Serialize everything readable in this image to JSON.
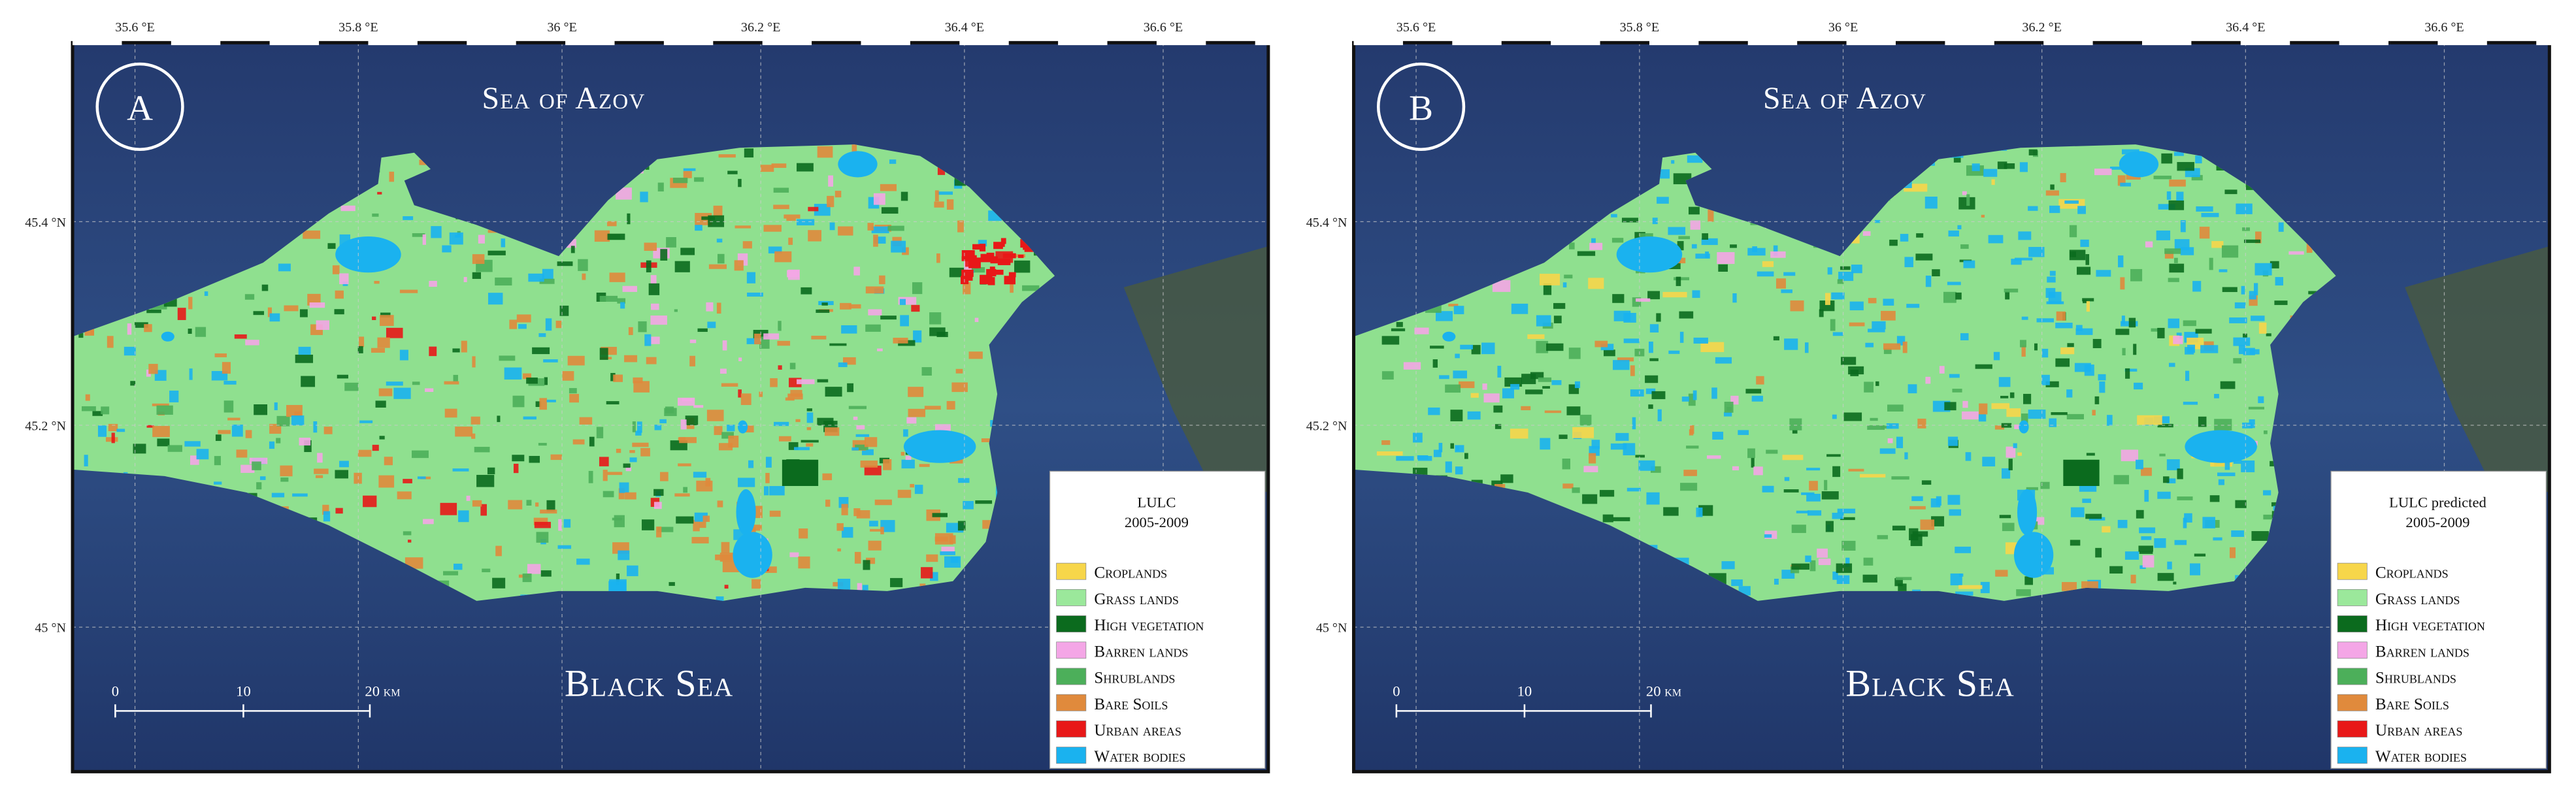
{
  "panels": [
    {
      "label": "A",
      "sea_top": "Sea of Azov",
      "sea_bottom": "Black Sea",
      "lon_ticks": [
        "35.6 °E",
        "35.8 °E",
        "36 °E",
        "36.2 °E",
        "36.4 °E",
        "36.6 °E"
      ],
      "lat_ticks": [
        "45.4 °N",
        "45.2 °N",
        "45 °N"
      ],
      "scale_labels": [
        "0",
        "10",
        "20 km"
      ],
      "legend": {
        "title": [
          "LULC",
          "2005-2009"
        ],
        "items": [
          {
            "name": "Croplands",
            "color": "#f7d64a"
          },
          {
            "name": "Grass lands",
            "color": "#9be89b"
          },
          {
            "name": "High vegetation",
            "color": "#0b6b1e"
          },
          {
            "name": "Barren lands",
            "color": "#f4a6e6"
          },
          {
            "name": "Shrublands",
            "color": "#4caf5a"
          },
          {
            "name": "Bare Soils",
            "color": "#e08a3c"
          },
          {
            "name": "Urban areas",
            "color": "#e81818"
          },
          {
            "name": "Water bodies",
            "color": "#1ab2ef"
          }
        ]
      }
    },
    {
      "label": "B",
      "sea_top": "Sea of Azov",
      "sea_bottom": "Black Sea",
      "lon_ticks": [
        "35.6 °E",
        "35.8 °E",
        "36 °E",
        "36.2 °E",
        "36.4 °E",
        "36.6 °E"
      ],
      "lat_ticks": [
        "45.4 °N",
        "45.2 °N",
        "45 °N"
      ],
      "scale_labels": [
        "0",
        "10",
        "20 km"
      ],
      "legend": {
        "title": [
          "LULC predicted",
          "2005-2009"
        ],
        "items": [
          {
            "name": "Croplands",
            "color": "#f7d64a"
          },
          {
            "name": "Grass lands",
            "color": "#9be89b"
          },
          {
            "name": "High vegetation",
            "color": "#0b6b1e"
          },
          {
            "name": "Barren lands",
            "color": "#f4a6e6"
          },
          {
            "name": "Shrublands",
            "color": "#4caf5a"
          },
          {
            "name": "Bare Soils",
            "color": "#e08a3c"
          },
          {
            "name": "Urban areas",
            "color": "#e81818"
          },
          {
            "name": "Water bodies",
            "color": "#1ab2ef"
          }
        ]
      }
    }
  ]
}
